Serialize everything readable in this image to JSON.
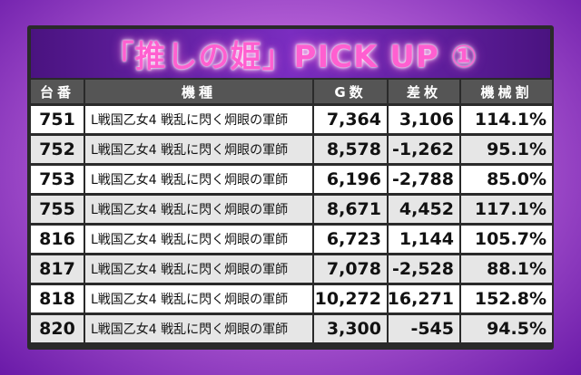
{
  "title": "「推しの姫」PICK UP ①",
  "table": {
    "header": [
      "台番",
      "機種",
      "G数",
      "差枚",
      "機械割"
    ],
    "rows": [
      [
        "751",
        "L戦国乙女4 戦乱に閃く炯眼の軍師",
        "7,364",
        "3,106",
        "114.1%"
      ],
      [
        "752",
        "L戦国乙女4 戦乱に閃く炯眼の軍師",
        "8,578",
        "-1,262",
        "95.1%"
      ],
      [
        "753",
        "L戦国乙女4 戦乱に閃く炯眼の軍師",
        "6,196",
        "-2,788",
        "85.0%"
      ],
      [
        "755",
        "L戦国乙女4 戦乱に閃く炯眼の軍師",
        "8,671",
        "4,452",
        "117.1%"
      ],
      [
        "816",
        "L戦国乙女4 戦乱に閃く炯眼の軍師",
        "6,723",
        "1,144",
        "105.7%"
      ],
      [
        "817",
        "L戦国乙女4 戦乱に閃く炯眼の軍師",
        "7,078",
        "-2,528",
        "88.1%"
      ],
      [
        "818",
        "L戦国乙女4 戦乱に閃く炯眼の軍師",
        "10,272",
        "16,271",
        "152.8%"
      ],
      [
        "820",
        "L戦国乙女4 戦乱に閃く炯眼の軍師",
        "3,300",
        "-545",
        "94.5%"
      ]
    ]
  }
}
